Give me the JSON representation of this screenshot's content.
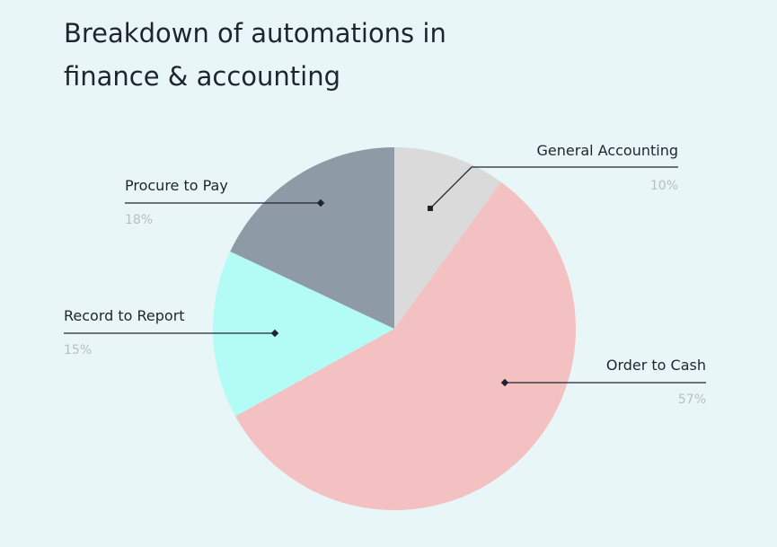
{
  "chart_data": {
    "type": "pie",
    "title": "Breakdown of automations in finance & accounting",
    "slices": [
      {
        "label": "General Accounting",
        "value": 10,
        "value_label": "10%",
        "color": "#dadada"
      },
      {
        "label": "Order to Cash",
        "value": 57,
        "value_label": "57%",
        "color": "#f4c1c2"
      },
      {
        "label": "Record to Report",
        "value": 15,
        "value_label": "15%",
        "color": "#b2fcf5"
      },
      {
        "label": "Procure to Pay",
        "value": 18,
        "value_label": "18%",
        "color": "#8f9aa7"
      }
    ]
  }
}
